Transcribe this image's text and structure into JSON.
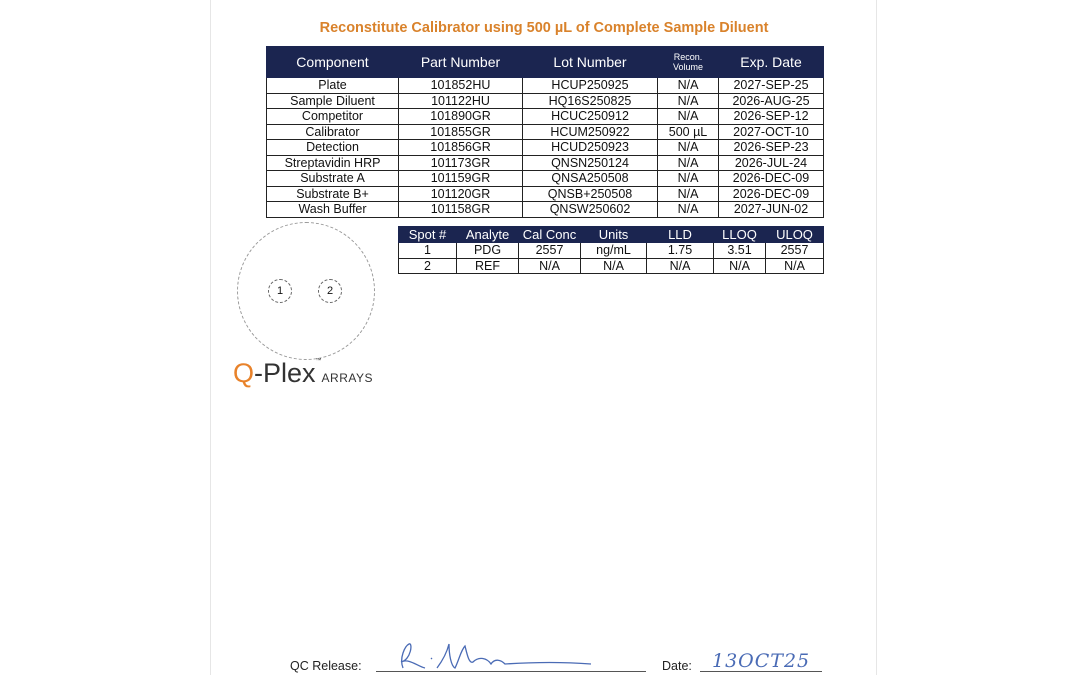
{
  "title": "Reconstitute Calibrator using 500 µL of Complete Sample Diluent",
  "components_table": {
    "headers": [
      "Component",
      "Part Number",
      "Lot Number",
      "Recon. Volume",
      "Exp. Date"
    ],
    "rows": [
      [
        "Plate",
        "101852HU",
        "HCUP250925",
        "N/A",
        "2027-SEP-25"
      ],
      [
        "Sample Diluent",
        "101122HU",
        "HQ16S250825",
        "N/A",
        "2026-AUG-25"
      ],
      [
        "Competitor",
        "101890GR",
        "HCUC250912",
        "N/A",
        "2026-SEP-12"
      ],
      [
        "Calibrator",
        "101855GR",
        "HCUM250922",
        "500 µL",
        "2027-OCT-10"
      ],
      [
        "Detection",
        "101856GR",
        "HCUD250923",
        "N/A",
        "2026-SEP-23"
      ],
      [
        "Streptavidin HRP",
        "101173GR",
        "QNSN250124",
        "N/A",
        "2026-JUL-24"
      ],
      [
        "Substrate A",
        "101159GR",
        "QNSA250508",
        "N/A",
        "2026-DEC-09"
      ],
      [
        "Substrate B+",
        "101120GR",
        "QNSB+250508",
        "N/A",
        "2026-DEC-09"
      ],
      [
        "Wash Buffer",
        "101158GR",
        "QNSW250602",
        "N/A",
        "2027-JUN-02"
      ]
    ]
  },
  "spots_table": {
    "headers": [
      "Spot #",
      "Analyte",
      "Cal Conc",
      "Units",
      "LLD",
      "LLOQ",
      "ULOQ"
    ],
    "rows": [
      [
        "1",
        "PDG",
        "2557",
        "ng/mL",
        "1.75",
        "3.51",
        "2557"
      ],
      [
        "2",
        "REF",
        "N/A",
        "N/A",
        "N/A",
        "N/A",
        "N/A"
      ]
    ]
  },
  "plate_diagram": {
    "spots": [
      "1",
      "2"
    ]
  },
  "logo": {
    "q": "Q",
    "plex": "-Plex",
    "tm": "™",
    "arrays": "ARRAYS"
  },
  "footer": {
    "qc_release_label": "QC Release:",
    "date_label": "Date:",
    "date_value": "13OCT25"
  },
  "colors": {
    "title": "#d9822b",
    "header_bg": "#1b2550",
    "ink": "#4a6bb5"
  }
}
